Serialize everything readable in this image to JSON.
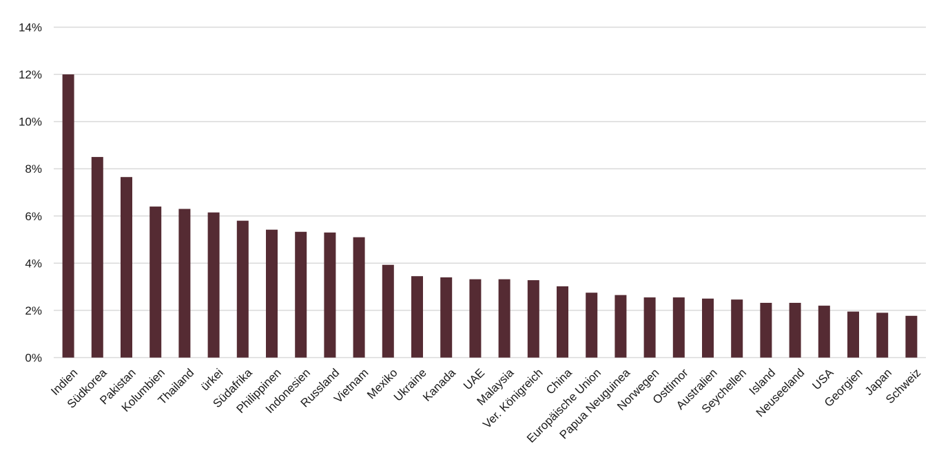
{
  "chart_data": {
    "type": "bar",
    "categories": [
      "Indien",
      "Südkorea",
      "Pakistan",
      "Kolumbien",
      "Thailand",
      "ürkei",
      "Südafrika",
      "Philippinen",
      "Indonesien",
      "Russland",
      "Vietnam",
      "Mexiko",
      "Ukraine",
      "Kanada",
      "UAE",
      "Malaysia",
      "Ver. Königreich",
      "China",
      "Europäische Union",
      "Papua Neuguinea",
      "Norwegen",
      "Osttimor",
      "Australien",
      "Seychellen",
      "Island",
      "Neuseeland",
      "USA",
      "Georgien",
      "Japan",
      "Schweiz"
    ],
    "values": [
      12.0,
      8.5,
      7.65,
      6.4,
      6.3,
      6.15,
      5.8,
      5.42,
      5.33,
      5.3,
      5.1,
      3.93,
      3.45,
      3.4,
      3.32,
      3.32,
      3.28,
      3.02,
      2.75,
      2.65,
      2.55,
      2.55,
      2.5,
      2.46,
      2.32,
      2.32,
      2.2,
      1.95,
      1.9,
      1.77
    ],
    "y_ticks": [
      0,
      2,
      4,
      6,
      8,
      10,
      12,
      14
    ],
    "y_tick_labels": [
      "0%",
      "2%",
      "4%",
      "6%",
      "8%",
      "10%",
      "12%",
      "14%"
    ],
    "ylim": [
      0,
      14
    ],
    "title": "",
    "xlabel": "",
    "ylabel": "",
    "grid": true,
    "legend": "none",
    "bar_color": "#552b33",
    "grid_color": "#d9d9d9"
  }
}
